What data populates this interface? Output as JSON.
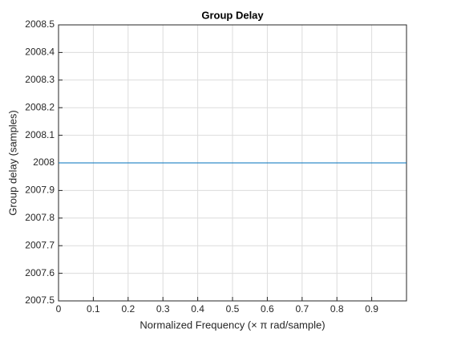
{
  "chart_data": {
    "type": "line",
    "title": "Group Delay",
    "xlabel": "Normalized  Frequency    (× π  rad/sample)",
    "ylabel": "Group delay (samples)",
    "x": [
      0,
      1
    ],
    "series": [
      {
        "color": "#0072bd",
        "values": [
          2008,
          2008
        ]
      }
    ],
    "xlim": [
      0,
      1
    ],
    "xticks": [
      0,
      0.1,
      0.2,
      0.3,
      0.4,
      0.5,
      0.6,
      0.7,
      0.8,
      0.9
    ],
    "ylim": [
      2007.5,
      2008.5
    ],
    "yticks": [
      2007.5,
      2007.6,
      2007.7,
      2007.8,
      2007.9,
      2008,
      2008.1,
      2008.2,
      2008.3,
      2008.4,
      2008.5
    ],
    "grid": true
  }
}
